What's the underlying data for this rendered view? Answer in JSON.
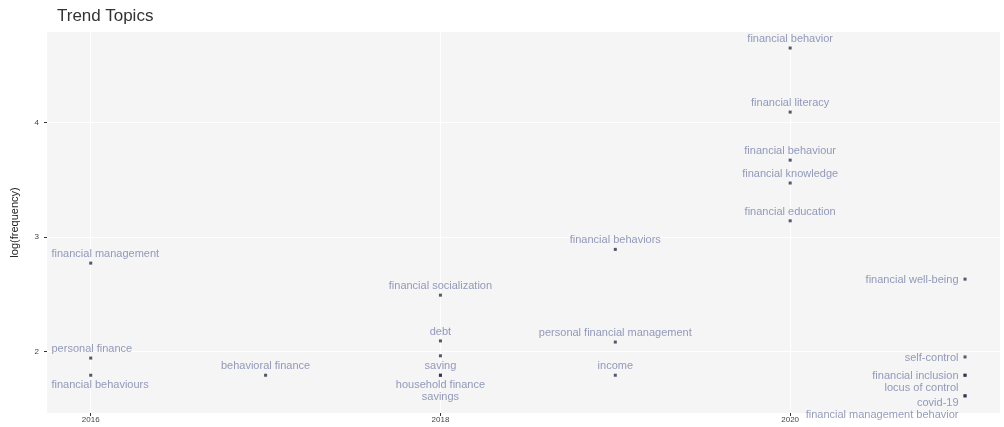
{
  "chart_data": {
    "type": "scatter",
    "title": "Trend Topics",
    "ylabel": "log(frequency)",
    "x": [
      2020,
      2020,
      2020,
      2020,
      2020,
      2019,
      2021,
      2016,
      2018,
      2018,
      2018,
      2019,
      2016,
      2016,
      2017,
      2018,
      2018,
      2019,
      2021,
      2021,
      2021,
      2021,
      2021
    ],
    "values": [
      4.65,
      4.09,
      3.67,
      3.47,
      3.14,
      2.89,
      2.63,
      2.77,
      2.49,
      2.09,
      1.96,
      2.08,
      1.94,
      1.79,
      1.79,
      1.79,
      1.79,
      1.79,
      1.95,
      1.79,
      1.79,
      1.61,
      1.61
    ],
    "value_labels": [
      "financial behavior",
      "financial literacy",
      "financial behaviour",
      "financial knowledge",
      "financial education",
      "financial behaviors",
      "financial well-being",
      "financial management",
      "financial socialization",
      "debt",
      "saving",
      "personal financial management",
      "personal finance",
      "financial behaviours",
      "behavioral finance",
      "household finance",
      "savings",
      "income",
      "self-control",
      "financial inclusion",
      "locus of control",
      "covid-19",
      "financial management behavior"
    ],
    "color": "#2b2f4a",
    "xlim": [
      2015.75,
      2021.2
    ],
    "xticks": [
      2016,
      2018,
      2020
    ],
    "ylim": [
      1.46,
      4.79
    ],
    "yticks": [
      2,
      3,
      4
    ],
    "grid": true,
    "marker": "square"
  }
}
